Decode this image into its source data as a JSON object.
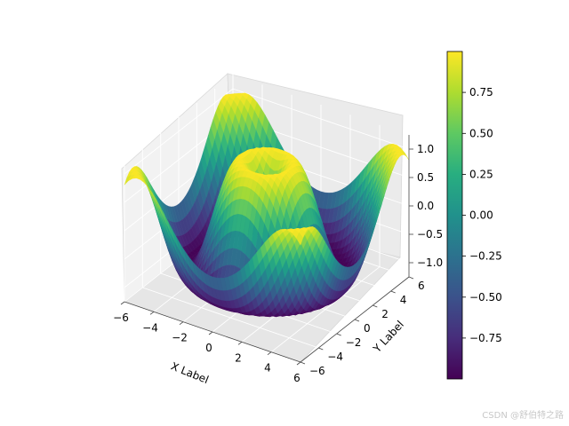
{
  "chart_data": {
    "type": "surface3d",
    "function": "sin(sqrt(x^2 + y^2))",
    "x_range": [
      -6,
      6
    ],
    "y_range": [
      -6,
      6
    ],
    "z_range": [
      -1.25,
      1.25
    ],
    "colormap": "viridis",
    "xlabel": "X Label",
    "ylabel": "Y Label",
    "zlabel": "",
    "x_ticks": [
      "−6",
      "−4",
      "−2",
      "0",
      "2",
      "4",
      "6"
    ],
    "y_ticks": [
      "−6",
      "−4",
      "−2",
      "0",
      "2",
      "4",
      "6"
    ],
    "z_ticks": [
      "−1.0",
      "−0.5",
      "0.0",
      "0.5",
      "1.0"
    ],
    "colorbar": {
      "min": -1.0,
      "max": 1.0,
      "ticks": [
        "−0.75",
        "−0.50",
        "−0.25",
        "0.00",
        "0.25",
        "0.50",
        "0.75"
      ]
    },
    "grid": true
  },
  "watermark": "CSDN @舒伯特之路"
}
